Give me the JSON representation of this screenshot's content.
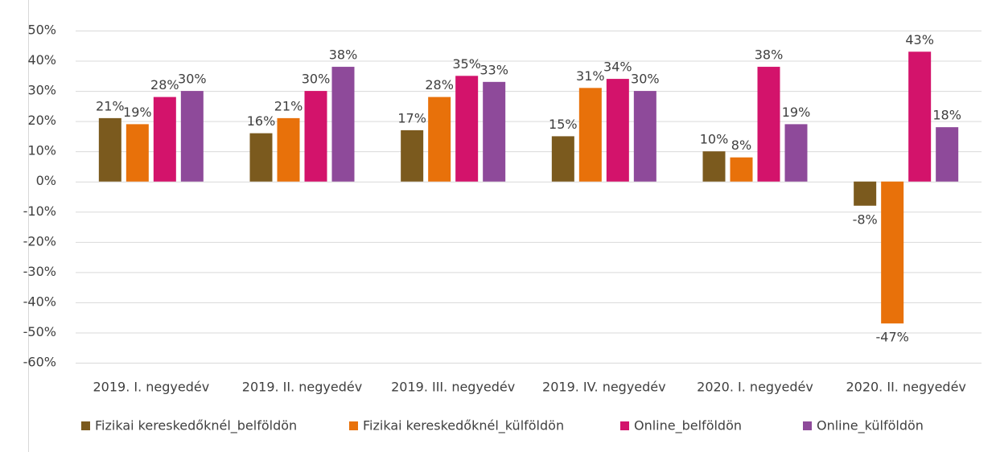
{
  "chart_data": {
    "type": "bar",
    "categories": [
      "2019. I. negyedév",
      "2019. II. negyedév",
      "2019. III. negyedév",
      "2019. IV. negyedév",
      "2020. I. negyedév",
      "2020. II. negyedév"
    ],
    "series": [
      {
        "name": "Fizikai kereskedőknél_belföldön",
        "color": "#7b5a1e",
        "values": [
          21,
          16,
          17,
          15,
          10,
          -8
        ],
        "value_labels": [
          "21%",
          "16%",
          "17%",
          "15%",
          "10%",
          "-8%"
        ]
      },
      {
        "name": "Fizikai kereskedőknél_külföldön",
        "color": "#e8710a",
        "values": [
          19,
          21,
          28,
          31,
          8,
          -47
        ],
        "value_labels": [
          "19%",
          "21%",
          "28%",
          "31%",
          "8%",
          "-47%"
        ]
      },
      {
        "name": "Online_belföldön",
        "color": "#d3136b",
        "values": [
          28,
          30,
          35,
          34,
          38,
          43
        ],
        "value_labels": [
          "28%",
          "30%",
          "35%",
          "34%",
          "38%",
          "43%"
        ]
      },
      {
        "name": "Online_külföldön",
        "color": "#8e4a9a",
        "values": [
          30,
          38,
          33,
          30,
          19,
          18
        ],
        "value_labels": [
          "30%",
          "38%",
          "33%",
          "30%",
          "19%",
          "18%"
        ]
      }
    ],
    "ylim": [
      -60,
      50
    ],
    "yticks": [
      {
        "value": -60,
        "label": "-60%"
      },
      {
        "value": -50,
        "label": "-50%"
      },
      {
        "value": -40,
        "label": "-40%"
      },
      {
        "value": -30,
        "label": "-30%"
      },
      {
        "value": -20,
        "label": "-20%"
      },
      {
        "value": -10,
        "label": "-10%"
      },
      {
        "value": 0,
        "label": "0%"
      },
      {
        "value": 10,
        "label": "10%"
      },
      {
        "value": 20,
        "label": "20%"
      },
      {
        "value": 30,
        "label": "30%"
      },
      {
        "value": 40,
        "label": "40%"
      },
      {
        "value": 50,
        "label": "50%"
      }
    ],
    "grid": true,
    "legend": "bottom"
  }
}
